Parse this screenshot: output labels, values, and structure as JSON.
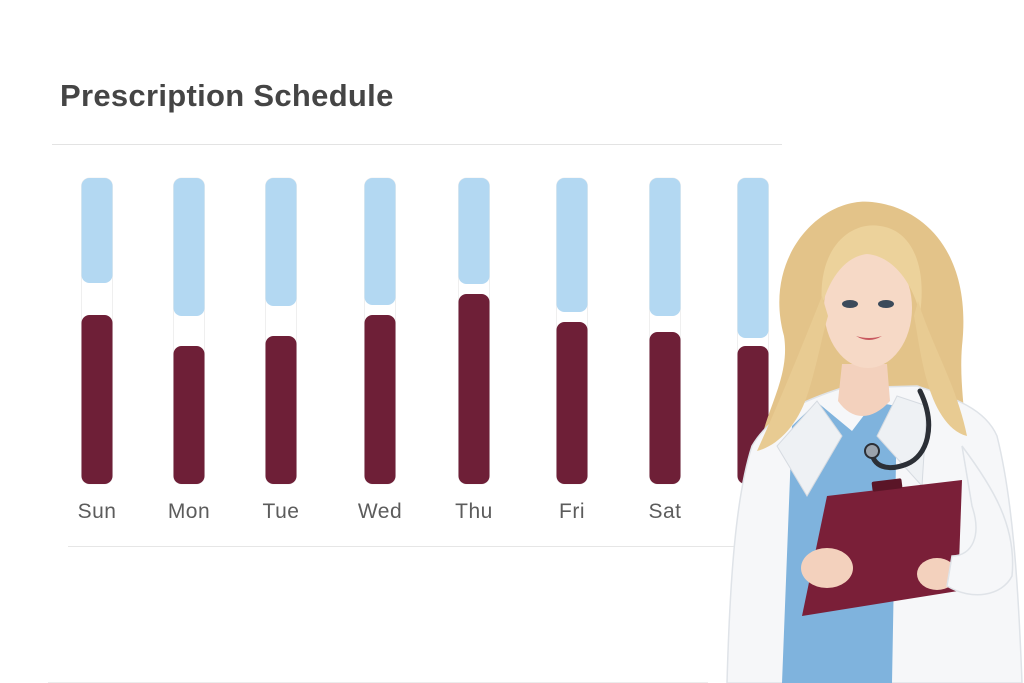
{
  "header": {
    "title": "Prescription Schedule"
  },
  "colors": {
    "upper_bar": "#b3d8f2",
    "lower_bar": "#6e1f37",
    "title": "#454545",
    "label": "#5c5c5c",
    "scrubs": "#7fb3dd",
    "coat": "#f6f7f9",
    "clipboard": "#7a1f38",
    "hair": "#e6c98d"
  },
  "chart_data": {
    "type": "bar",
    "categories": [
      "Sun",
      "Mon",
      "Tue",
      "Wed",
      "Thu",
      "Fri",
      "Sat",
      ""
    ],
    "series": [
      {
        "values": [
          105,
          138,
          128,
          127,
          106,
          134,
          138,
          160
        ]
      },
      {
        "values": [
          169,
          138,
          148,
          169,
          190,
          162,
          152,
          138
        ]
      }
    ],
    "ylim": [
      0,
      306
    ],
    "grid": false,
    "legend": "none"
  },
  "illustration": {
    "subject": "doctor-with-clipboard"
  }
}
